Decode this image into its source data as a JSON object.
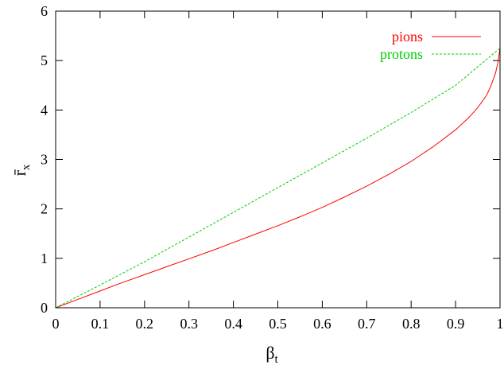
{
  "chart_data": {
    "type": "line",
    "title": "",
    "xlabel": "βt",
    "xlabel_main": "β",
    "xlabel_sub": "t",
    "ylabel": "r̄x",
    "ylabel_main": "r̄",
    "ylabel_sub": "x",
    "xlim": [
      0,
      1
    ],
    "ylim": [
      0,
      6
    ],
    "xticks": [
      "0",
      "0.1",
      "0.2",
      "0.3",
      "0.4",
      "0.5",
      "0.6",
      "0.7",
      "0.8",
      "0.9",
      "1"
    ],
    "yticks": [
      "0",
      "1",
      "2",
      "3",
      "4",
      "5",
      "6"
    ],
    "legend_position": "top-right",
    "series": [
      {
        "name": "pions",
        "color": "#ff0000",
        "dash": "solid",
        "x": [
          0,
          0.05,
          0.1,
          0.15,
          0.2,
          0.25,
          0.3,
          0.35,
          0.4,
          0.45,
          0.5,
          0.55,
          0.6,
          0.65,
          0.7,
          0.75,
          0.8,
          0.85,
          0.9,
          0.93,
          0.95,
          0.97,
          0.98,
          0.99,
          0.995,
          1.0
        ],
        "y": [
          0,
          0.17,
          0.34,
          0.51,
          0.67,
          0.83,
          0.99,
          1.15,
          1.32,
          1.49,
          1.66,
          1.84,
          2.03,
          2.24,
          2.46,
          2.7,
          2.96,
          3.26,
          3.6,
          3.85,
          4.05,
          4.3,
          4.5,
          4.75,
          4.95,
          5.25
        ]
      },
      {
        "name": "protons",
        "color": "#00cc00",
        "dash": "dashed",
        "x": [
          0,
          0.1,
          0.2,
          0.3,
          0.4,
          0.5,
          0.6,
          0.7,
          0.8,
          0.9,
          1.0
        ],
        "y": [
          0,
          0.46,
          0.93,
          1.43,
          1.93,
          2.43,
          2.93,
          3.43,
          3.95,
          4.5,
          5.25
        ]
      }
    ]
  }
}
